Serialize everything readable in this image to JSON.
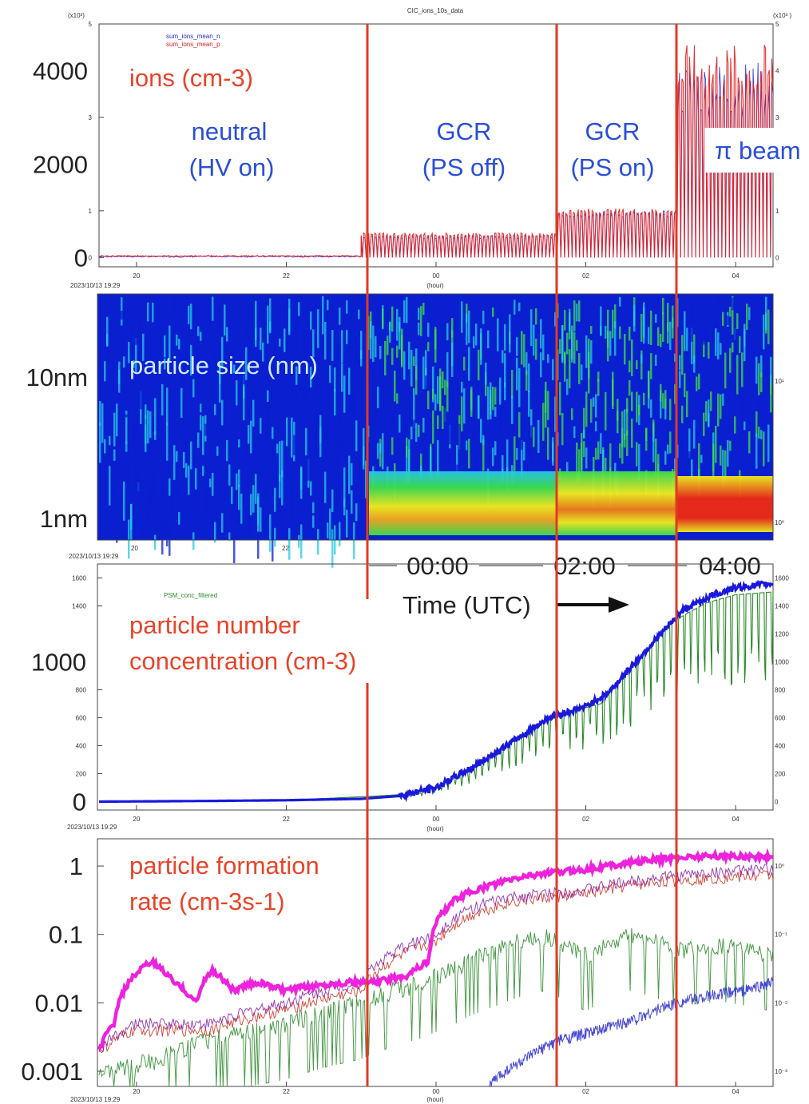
{
  "chart_data": [
    {
      "panel": "ions",
      "type": "line",
      "title": "CIC_ions_10s_data",
      "multiplier_label_left": "(x10³)",
      "multiplier_label_right": "(x10³ )",
      "date_stamp": "2023/10/13 19:29",
      "xlabel": "(hour)",
      "x_tick_labels": [
        "20",
        "22",
        "00",
        "02",
        "04"
      ],
      "x_tick_hours": [
        20,
        22,
        24,
        26,
        28
      ],
      "xlim_hours": [
        19.5,
        28.5
      ],
      "y_small_labels": [
        "5",
        "3",
        "1",
        "0"
      ],
      "y_small_values": [
        5000,
        3000,
        1000,
        0
      ],
      "y_right_labels": [
        "5",
        "4",
        "3",
        "2",
        "1",
        "0"
      ],
      "y_right_values": [
        5000,
        4000,
        3000,
        2000,
        1000,
        0
      ],
      "y_big_labels": [
        "4000",
        "2000",
        "0"
      ],
      "y_big_values": [
        4000,
        2000,
        0
      ],
      "ylim": [
        -200,
        5000
      ],
      "legend": [
        "sum_ions_mean_n",
        "sum_ions_mean_p"
      ],
      "series": [
        {
          "name": "sum_ions_mean_n",
          "color": "#2a2ad0",
          "segments": [
            {
              "x0": 19.5,
              "x1": 23.0,
              "level": 20
            },
            {
              "x0": 23.0,
              "x1": 25.6,
              "level": 450
            },
            {
              "x0": 25.6,
              "x1": 27.2,
              "level": 950
            },
            {
              "x0": 27.2,
              "x1": 28.5,
              "level": 3500
            }
          ]
        },
        {
          "name": "sum_ions_mean_p",
          "color": "#e02020",
          "segments": [
            {
              "x0": 19.5,
              "x1": 23.0,
              "level": 30
            },
            {
              "x0": 23.0,
              "x1": 25.6,
              "level": 500
            },
            {
              "x0": 25.6,
              "x1": 27.2,
              "level": 1000
            },
            {
              "x0": 27.2,
              "x1": 28.5,
              "level": 3800
            }
          ]
        }
      ]
    },
    {
      "panel": "size",
      "type": "heatmap",
      "date_stamp": "2023/10/13 19:29",
      "x_tick_labels": [
        "20",
        "22"
      ],
      "x_tick_hours": [
        20,
        22
      ],
      "y_big_labels": [
        "10nm",
        "1nm"
      ],
      "y_right_labels": [
        "10¹",
        "10⁰"
      ],
      "y_values_nm": [
        10,
        1
      ],
      "colormap": [
        "#0a1fd0",
        "#27c9e6",
        "#3ddf4a",
        "#f2ee1a",
        "#f02a10"
      ]
    },
    {
      "panel": "concentration",
      "type": "line",
      "date_stamp": "2023/10/13 19:29",
      "xlabel": "(hour)",
      "x_tick_labels": [
        "20",
        "22",
        "00",
        "02",
        "04"
      ],
      "x_tick_hours": [
        20,
        22,
        24,
        26,
        28
      ],
      "xlim_hours": [
        19.5,
        28.5
      ],
      "legend": [
        "PSM_conc_filtered"
      ],
      "y_small_labels": [
        "1600",
        "1400",
        "800",
        "600",
        "400",
        "200"
      ],
      "y_small_values": [
        1600,
        1400,
        800,
        600,
        400,
        200
      ],
      "y_right_labels": [
        "1600",
        "1400",
        "1200",
        "1000",
        "800",
        "600",
        "400",
        "200",
        "0"
      ],
      "y_right_values": [
        1600,
        1400,
        1200,
        1000,
        800,
        600,
        400,
        200,
        0
      ],
      "y_big_labels": [
        "1000",
        "0"
      ],
      "y_big_values": [
        1000,
        0
      ],
      "ylim": [
        -60,
        1700
      ],
      "series": [
        {
          "name": "PSM_conc_filtered",
          "color": "#2a8a2a",
          "x": [
            19.5,
            22.0,
            23.2,
            23.8,
            24.5,
            25.0,
            25.6,
            26.2,
            26.8,
            27.2,
            27.6,
            28.0,
            28.5
          ],
          "y": [
            0,
            10,
            40,
            60,
            230,
            420,
            620,
            700,
            1080,
            1300,
            1420,
            1480,
            1500
          ]
        },
        {
          "color": "#1a1adc",
          "x": [
            19.5,
            21.0,
            22.0,
            23.0,
            23.5,
            24.0,
            24.5,
            25.0,
            25.5,
            26.0,
            26.3,
            26.7,
            27.0,
            27.3,
            27.7,
            28.0,
            28.5
          ],
          "y": [
            0,
            5,
            10,
            20,
            40,
            100,
            250,
            420,
            600,
            680,
            780,
            1020,
            1200,
            1370,
            1480,
            1530,
            1560
          ]
        }
      ]
    },
    {
      "panel": "formation_rate",
      "type": "line",
      "y_scale": "log",
      "date_stamp": "2023/10/13 19:29",
      "xlabel": "(hour)",
      "x_tick_labels": [
        "20",
        "22",
        "00",
        "02",
        "04"
      ],
      "x_tick_hours": [
        20,
        22,
        24,
        26,
        28
      ],
      "xlim_hours": [
        19.5,
        28.5
      ],
      "y_big_labels": [
        "1",
        "0.1",
        "0.01",
        "0.001"
      ],
      "y_big_values": [
        1,
        0.1,
        0.01,
        0.001
      ],
      "y_right_labels": [
        "10⁰",
        "10⁻¹",
        "10⁻²",
        "10⁻³"
      ],
      "y_right_values": [
        1,
        0.1,
        0.01,
        0.001
      ],
      "ylim": [
        0.0006,
        2.5
      ],
      "series": [
        {
          "color": "#ee22dd",
          "x": [
            19.5,
            19.7,
            19.9,
            20.2,
            20.5,
            20.8,
            21.0,
            21.3,
            21.6,
            22.0,
            22.4,
            22.8,
            23.2,
            23.6,
            23.9,
            24.0,
            24.3,
            24.8,
            25.3,
            26.0,
            26.8,
            27.5,
            28.0,
            28.5
          ],
          "y": [
            0.002,
            0.005,
            0.02,
            0.04,
            0.02,
            0.01,
            0.03,
            0.015,
            0.02,
            0.015,
            0.018,
            0.02,
            0.02,
            0.025,
            0.04,
            0.15,
            0.35,
            0.55,
            0.75,
            0.9,
            1.2,
            1.4,
            1.4,
            1.35
          ]
        },
        {
          "color": "#cc3322",
          "x": [
            19.5,
            20.0,
            21.0,
            22.0,
            23.0,
            24.0,
            24.5,
            25.0,
            26.0,
            27.0,
            28.0,
            28.5
          ],
          "y": [
            0.002,
            0.004,
            0.004,
            0.008,
            0.015,
            0.08,
            0.2,
            0.3,
            0.4,
            0.6,
            0.7,
            0.75
          ]
        },
        {
          "color": "#8822aa",
          "x": [
            19.5,
            20.0,
            21.0,
            22.0,
            23.0,
            24.0,
            24.5,
            25.0,
            26.0,
            27.0,
            28.0,
            28.5
          ],
          "y": [
            0.002,
            0.005,
            0.005,
            0.01,
            0.02,
            0.1,
            0.25,
            0.35,
            0.45,
            0.7,
            0.85,
            0.9
          ]
        },
        {
          "color": "#2a8a2a",
          "x": [
            19.5,
            20.3,
            21.0,
            22.0,
            23.0,
            23.8,
            24.2,
            24.8,
            25.4,
            26.0,
            26.6,
            27.2,
            27.8,
            28.5
          ],
          "y": [
            0.001,
            0.0015,
            0.003,
            0.005,
            0.01,
            0.02,
            0.03,
            0.06,
            0.1,
            0.05,
            0.1,
            0.06,
            0.07,
            0.05
          ]
        },
        {
          "color": "#2a2ad0",
          "x": [
            24.7,
            25.2,
            25.7,
            26.2,
            26.7,
            27.2,
            27.7,
            28.2,
            28.5
          ],
          "y": [
            0.0006,
            0.0015,
            0.003,
            0.004,
            0.006,
            0.01,
            0.013,
            0.016,
            0.02
          ]
        }
      ]
    }
  ],
  "annotations": {
    "ions_label": "ions (cm-3)",
    "neutral_line1": "neutral",
    "neutral_line2": "(HV on)",
    "gcr_off_line1": "GCR",
    "gcr_off_line2": "(PS off)",
    "gcr_on_line1": "GCR",
    "gcr_on_line2": "(PS on)",
    "pi_beam": "π beam",
    "particle_size": "particle size (nm)",
    "time_00": "00:00",
    "time_02": "02:00",
    "time_04": "04:00",
    "time_axis": "Time (UTC)",
    "conc_line1": "particle number",
    "conc_line2": "concentration (cm-3)",
    "rate_line1": "particle formation",
    "rate_line2": "rate (cm-3s-1)"
  },
  "colors": {
    "divider_red": "#e23a22",
    "annot_red": "#e8442a",
    "annot_blue": "#2a4fd6"
  }
}
